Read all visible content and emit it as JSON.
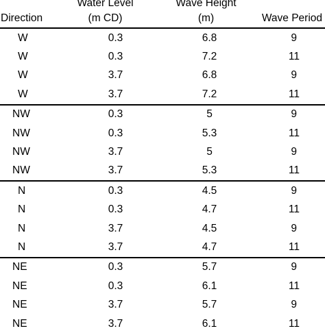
{
  "headers": {
    "direction": "Direction",
    "water_level_line1": "Water Level",
    "water_level_line2": "(m CD)",
    "wave_height_line1": "Wave Height",
    "wave_height_line2": "(m)",
    "wave_period": "Wave Period"
  },
  "rows": [
    {
      "direction": "W",
      "water_level": "0.3",
      "wave_height": "6.8",
      "wave_period": "9"
    },
    {
      "direction": "W",
      "water_level": "0.3",
      "wave_height": "7.2",
      "wave_period": "11"
    },
    {
      "direction": "W",
      "water_level": "3.7",
      "wave_height": "6.8",
      "wave_period": "9"
    },
    {
      "direction": "W",
      "water_level": "3.7",
      "wave_height": "7.2",
      "wave_period": "11"
    },
    {
      "direction": "NW",
      "water_level": "0.3",
      "wave_height": "5",
      "wave_period": "9"
    },
    {
      "direction": "NW",
      "water_level": "0.3",
      "wave_height": "5.3",
      "wave_period": "11"
    },
    {
      "direction": "NW",
      "water_level": "3.7",
      "wave_height": "5",
      "wave_period": "9"
    },
    {
      "direction": "NW",
      "water_level": "3.7",
      "wave_height": "5.3",
      "wave_period": "11"
    },
    {
      "direction": "N",
      "water_level": "0.3",
      "wave_height": "4.5",
      "wave_period": "9"
    },
    {
      "direction": "N",
      "water_level": "0.3",
      "wave_height": "4.7",
      "wave_period": "11"
    },
    {
      "direction": "N",
      "water_level": "3.7",
      "wave_height": "4.5",
      "wave_period": "9"
    },
    {
      "direction": "N",
      "water_level": "3.7",
      "wave_height": "4.7",
      "wave_period": "11"
    },
    {
      "direction": "NE",
      "water_level": "0.3",
      "wave_height": "5.7",
      "wave_period": "9"
    },
    {
      "direction": "NE",
      "water_level": "0.3",
      "wave_height": "6.1",
      "wave_period": "11"
    },
    {
      "direction": "NE",
      "water_level": "3.7",
      "wave_height": "5.7",
      "wave_period": "9"
    },
    {
      "direction": "NE",
      "water_level": "3.7",
      "wave_height": "6.1",
      "wave_period": "11"
    }
  ]
}
